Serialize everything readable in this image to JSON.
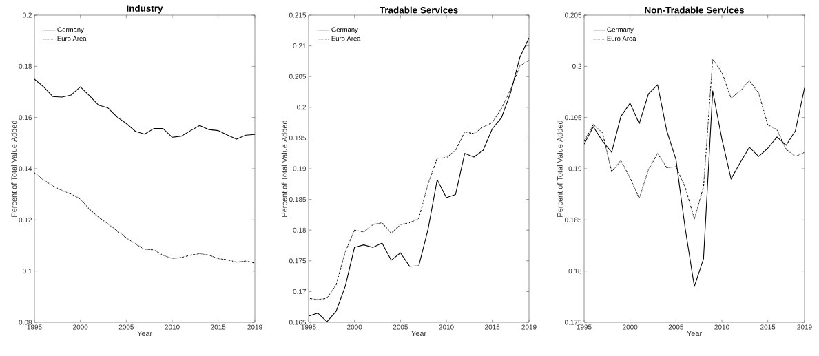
{
  "chart_data": [
    {
      "type": "line",
      "title": "Industry",
      "xlabel": "Year",
      "ylabel": "Percent of Total Value Added",
      "legend": "top left",
      "x": [
        1995,
        1996,
        1997,
        1998,
        1999,
        2000,
        2001,
        2002,
        2003,
        2004,
        2005,
        2006,
        2007,
        2008,
        2009,
        2010,
        2011,
        2012,
        2013,
        2014,
        2015,
        2016,
        2017,
        2018,
        2019
      ],
      "series": [
        {
          "name": "Germany",
          "color": "#000000",
          "line_style": "solid",
          "values": [
            0.175,
            0.172,
            0.1682,
            0.168,
            0.1688,
            0.172,
            0.1685,
            0.1648,
            0.1638,
            0.1602,
            0.1577,
            0.1546,
            0.1535,
            0.1557,
            0.1557,
            0.1523,
            0.1527,
            0.1549,
            0.1569,
            0.1553,
            0.1549,
            0.1532,
            0.1516,
            0.1531,
            0.1534
          ]
        },
        {
          "name": "Euro Area",
          "color": "#000000",
          "line_style": "dotted",
          "values": [
            0.1384,
            0.1356,
            0.1333,
            0.1315,
            0.1301,
            0.1282,
            0.1241,
            0.121,
            0.1185,
            0.1157,
            0.113,
            0.1106,
            0.1085,
            0.1083,
            0.1062,
            0.1049,
            0.1053,
            0.1062,
            0.1068,
            0.1062,
            0.1049,
            0.1044,
            0.1035,
            0.1039,
            0.1032
          ]
        }
      ],
      "xlim": [
        1995,
        2019
      ],
      "xticks": [
        1995,
        2000,
        2005,
        2010,
        2015,
        2019
      ],
      "ylim": [
        0.08,
        0.2
      ],
      "yticks": [
        0.08,
        0.1,
        0.12,
        0.14,
        0.16,
        0.18,
        0.2
      ]
    },
    {
      "type": "line",
      "title": "Tradable Services",
      "xlabel": "Year",
      "ylabel": "Percent of Total Value Added",
      "legend": "top left",
      "x": [
        1995,
        1996,
        1997,
        1998,
        1999,
        2000,
        2001,
        2002,
        2003,
        2004,
        2005,
        2006,
        2007,
        2008,
        2009,
        2010,
        2011,
        2012,
        2013,
        2014,
        2015,
        2016,
        2017,
        2018,
        2019
      ],
      "series": [
        {
          "name": "Germany",
          "color": "#000000",
          "line_style": "solid",
          "values": [
            0.166,
            0.1665,
            0.1651,
            0.1668,
            0.1709,
            0.1772,
            0.1776,
            0.1772,
            0.1779,
            0.1751,
            0.1763,
            0.1741,
            0.1742,
            0.1801,
            0.1882,
            0.1853,
            0.1858,
            0.1925,
            0.1919,
            0.193,
            0.1965,
            0.1983,
            0.2024,
            0.2081,
            0.2113
          ]
        },
        {
          "name": "Euro Area",
          "color": "#000000",
          "line_style": "dotted",
          "values": [
            0.1689,
            0.1687,
            0.1689,
            0.1711,
            0.1765,
            0.18,
            0.1797,
            0.1809,
            0.1812,
            0.1795,
            0.1809,
            0.1812,
            0.1819,
            0.1875,
            0.1917,
            0.1918,
            0.193,
            0.196,
            0.1957,
            0.1968,
            0.1975,
            0.1998,
            0.2029,
            0.2067,
            0.2077
          ]
        }
      ],
      "xlim": [
        1995,
        2019
      ],
      "xticks": [
        1995,
        2000,
        2005,
        2010,
        2015,
        2019
      ],
      "ylim": [
        0.165,
        0.215
      ],
      "yticks": [
        0.165,
        0.17,
        0.175,
        0.18,
        0.185,
        0.19,
        0.195,
        0.2,
        0.205,
        0.21,
        0.215
      ]
    },
    {
      "type": "line",
      "title": "Non-Tradable Services",
      "xlabel": "Year",
      "ylabel": "Percent of Total Value Added",
      "legend": "top left",
      "x": [
        1995,
        1996,
        1997,
        1998,
        1999,
        2000,
        2001,
        2002,
        2003,
        2004,
        2005,
        2006,
        2007,
        2008,
        2009,
        2010,
        2011,
        2012,
        2013,
        2014,
        2015,
        2016,
        2017,
        2018,
        2019
      ],
      "series": [
        {
          "name": "Germany",
          "color": "#000000",
          "line_style": "solid",
          "values": [
            0.1924,
            0.1941,
            0.1927,
            0.1916,
            0.1951,
            0.1964,
            0.1944,
            0.1973,
            0.1982,
            0.1937,
            0.1909,
            0.1842,
            0.1785,
            0.1812,
            0.1976,
            0.1929,
            0.189,
            0.1906,
            0.1921,
            0.1912,
            0.192,
            0.1931,
            0.1923,
            0.1937,
            0.1979
          ]
        },
        {
          "name": "Euro Area",
          "color": "#000000",
          "line_style": "dotted",
          "values": [
            0.1927,
            0.1943,
            0.1935,
            0.1897,
            0.1908,
            0.1891,
            0.1871,
            0.1899,
            0.1915,
            0.1901,
            0.1902,
            0.1882,
            0.1851,
            0.1882,
            0.2007,
            0.1994,
            0.1969,
            0.1976,
            0.1986,
            0.1974,
            0.1943,
            0.1938,
            0.1919,
            0.1912,
            0.1916
          ]
        }
      ],
      "xlim": [
        1995,
        2019
      ],
      "xticks": [
        1995,
        2000,
        2005,
        2010,
        2015,
        2019
      ],
      "ylim": [
        0.175,
        0.205
      ],
      "yticks": [
        0.175,
        0.18,
        0.185,
        0.19,
        0.195,
        0.2,
        0.205
      ]
    }
  ]
}
